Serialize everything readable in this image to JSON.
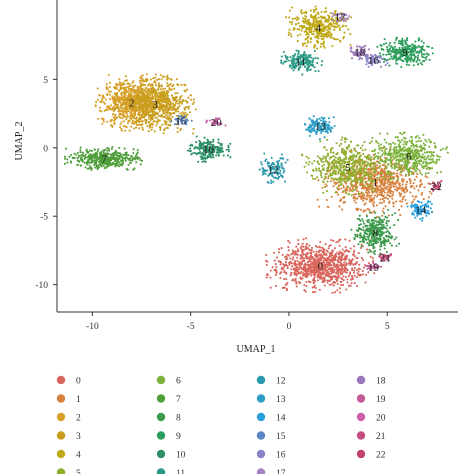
{
  "chart_data": {
    "type": "scatter",
    "xlabel": "UMAP_1",
    "ylabel": "UMAP_2",
    "xlim": [
      -11.8,
      8.6
    ],
    "ylim": [
      -12.0,
      10.8
    ],
    "xticks": [
      -10,
      -5,
      0,
      5
    ],
    "yticks": [
      -10,
      -5,
      0,
      5
    ],
    "grid": false,
    "legend_position": "bottom",
    "clusters": [
      {
        "name": "0",
        "color": "#d9655c",
        "x": 1.6,
        "y": -8.6,
        "sx": 1.75,
        "sy": 1.25,
        "n": 900
      },
      {
        "name": "1",
        "color": "#d8813d",
        "x": 4.4,
        "y": -2.5,
        "sx": 1.85,
        "sy": 1.6,
        "n": 750
      },
      {
        "name": "2",
        "color": "#d8a028",
        "x": -8.0,
        "y": 3.3,
        "sx": 1.3,
        "sy": 1.3,
        "n": 700
      },
      {
        "name": "3",
        "color": "#c89e1c",
        "x": -6.8,
        "y": 3.2,
        "sx": 1.3,
        "sy": 1.4,
        "n": 650
      },
      {
        "name": "4",
        "color": "#bfa916",
        "x": 1.5,
        "y": 8.8,
        "sx": 1.05,
        "sy": 1.0,
        "n": 380
      },
      {
        "name": "5",
        "color": "#8fae2d",
        "x": 3.0,
        "y": -1.4,
        "sx": 1.5,
        "sy": 1.4,
        "n": 500
      },
      {
        "name": "6",
        "color": "#7bb33c",
        "x": 6.1,
        "y": -0.6,
        "sx": 1.25,
        "sy": 1.1,
        "n": 450
      },
      {
        "name": "7",
        "color": "#4f9e3a",
        "x": -9.4,
        "y": -0.8,
        "sx": 1.25,
        "sy": 0.55,
        "n": 420
      },
      {
        "name": "8",
        "color": "#3d9a4c",
        "x": 4.4,
        "y": -6.2,
        "sx": 0.8,
        "sy": 1.05,
        "n": 320
      },
      {
        "name": "9",
        "color": "#2d9e5c",
        "x": 5.9,
        "y": 7.0,
        "sx": 0.95,
        "sy": 0.7,
        "n": 300
      },
      {
        "name": "10",
        "color": "#2e9067",
        "x": -4.1,
        "y": -0.1,
        "sx": 0.7,
        "sy": 0.6,
        "n": 200
      },
      {
        "name": "11",
        "color": "#2a9a86",
        "x": 0.6,
        "y": 6.3,
        "sx": 0.7,
        "sy": 0.6,
        "n": 170
      },
      {
        "name": "12",
        "color": "#2b99ad",
        "x": -0.8,
        "y": -1.6,
        "sx": 0.5,
        "sy": 0.75,
        "n": 110
      },
      {
        "name": "13",
        "color": "#2f9ec7",
        "x": 1.6,
        "y": 1.6,
        "sx": 0.6,
        "sy": 0.6,
        "n": 130
      },
      {
        "name": "14",
        "color": "#2a9fdd",
        "x": 6.7,
        "y": -4.5,
        "sx": 0.45,
        "sy": 0.55,
        "n": 90
      },
      {
        "name": "15",
        "color": "#5d86c8",
        "x": -5.5,
        "y": 2.0,
        "sx": 0.35,
        "sy": 0.3,
        "n": 40
      },
      {
        "name": "16",
        "color": "#8a82c8",
        "x": 4.3,
        "y": 6.4,
        "sx": 0.45,
        "sy": 0.35,
        "n": 60
      },
      {
        "name": "17",
        "color": "#a682c6",
        "x": 2.6,
        "y": 9.6,
        "sx": 0.35,
        "sy": 0.25,
        "n": 30
      },
      {
        "name": "18",
        "color": "#9a77b8",
        "x": 3.6,
        "y": 7.0,
        "sx": 0.4,
        "sy": 0.4,
        "n": 60
      },
      {
        "name": "19",
        "color": "#c25d99",
        "x": 4.3,
        "y": -8.7,
        "sx": 0.25,
        "sy": 0.2,
        "n": 40
      },
      {
        "name": "20",
        "color": "#cc5fa8",
        "x": -3.7,
        "y": 1.9,
        "sx": 0.35,
        "sy": 0.2,
        "n": 30
      },
      {
        "name": "21",
        "color": "#c44f7f",
        "x": 4.9,
        "y": -8.0,
        "sx": 0.25,
        "sy": 0.2,
        "n": 30
      },
      {
        "name": "22",
        "color": "#c0436a",
        "x": 7.5,
        "y": -2.8,
        "sx": 0.2,
        "sy": 0.25,
        "n": 25
      }
    ]
  },
  "legend": {
    "items": [
      {
        "label": "0",
        "color": "#d9655c"
      },
      {
        "label": "1",
        "color": "#d8813d"
      },
      {
        "label": "2",
        "color": "#d8a028"
      },
      {
        "label": "3",
        "color": "#c89e1c"
      },
      {
        "label": "4",
        "color": "#bfa916"
      },
      {
        "label": "5",
        "color": "#8fae2d"
      },
      {
        "label": "6",
        "color": "#7bb33c"
      },
      {
        "label": "7",
        "color": "#4f9e3a"
      },
      {
        "label": "8",
        "color": "#3d9a4c"
      },
      {
        "label": "9",
        "color": "#2d9e5c"
      },
      {
        "label": "10",
        "color": "#2e9067"
      },
      {
        "label": "11",
        "color": "#2a9a86"
      },
      {
        "label": "12",
        "color": "#2b99ad"
      },
      {
        "label": "13",
        "color": "#2f9ec7"
      },
      {
        "label": "14",
        "color": "#2a9fdd"
      },
      {
        "label": "15",
        "color": "#5d86c8"
      },
      {
        "label": "16",
        "color": "#8a82c8"
      },
      {
        "label": "17",
        "color": "#a682c6"
      },
      {
        "label": "18",
        "color": "#9a77b8"
      },
      {
        "label": "19",
        "color": "#c25d99"
      },
      {
        "label": "20",
        "color": "#cc5fa8"
      },
      {
        "label": "21",
        "color": "#c44f7f"
      },
      {
        "label": "22",
        "color": "#c0436a"
      }
    ]
  }
}
